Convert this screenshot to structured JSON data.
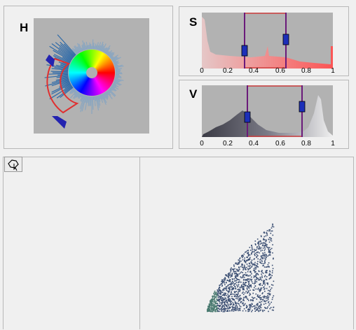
{
  "hue_panel": {
    "label": "H",
    "wheel_colors": [
      "#ff0000",
      "#ffff00",
      "#00ff00",
      "#00ffff",
      "#0000ff",
      "#ff00ff"
    ],
    "handle_color": "#2323b0",
    "selection_color": "#e03030"
  },
  "saturation_panel": {
    "label": "S",
    "ticks": [
      "0",
      "0.2",
      "0.4",
      "0.6",
      "0.8",
      "1"
    ],
    "range_low": 0.33,
    "range_high": 0.64
  },
  "value_panel": {
    "label": "V",
    "ticks": [
      "0",
      "0.2",
      "0.4",
      "0.6",
      "0.8",
      "1"
    ],
    "range_low": 0.35,
    "range_high": 0.77
  },
  "toolbar": {
    "lasso_tool_icon": "lasso-icon"
  },
  "scatter_plot": {
    "point_color": "#3a4e72"
  }
}
